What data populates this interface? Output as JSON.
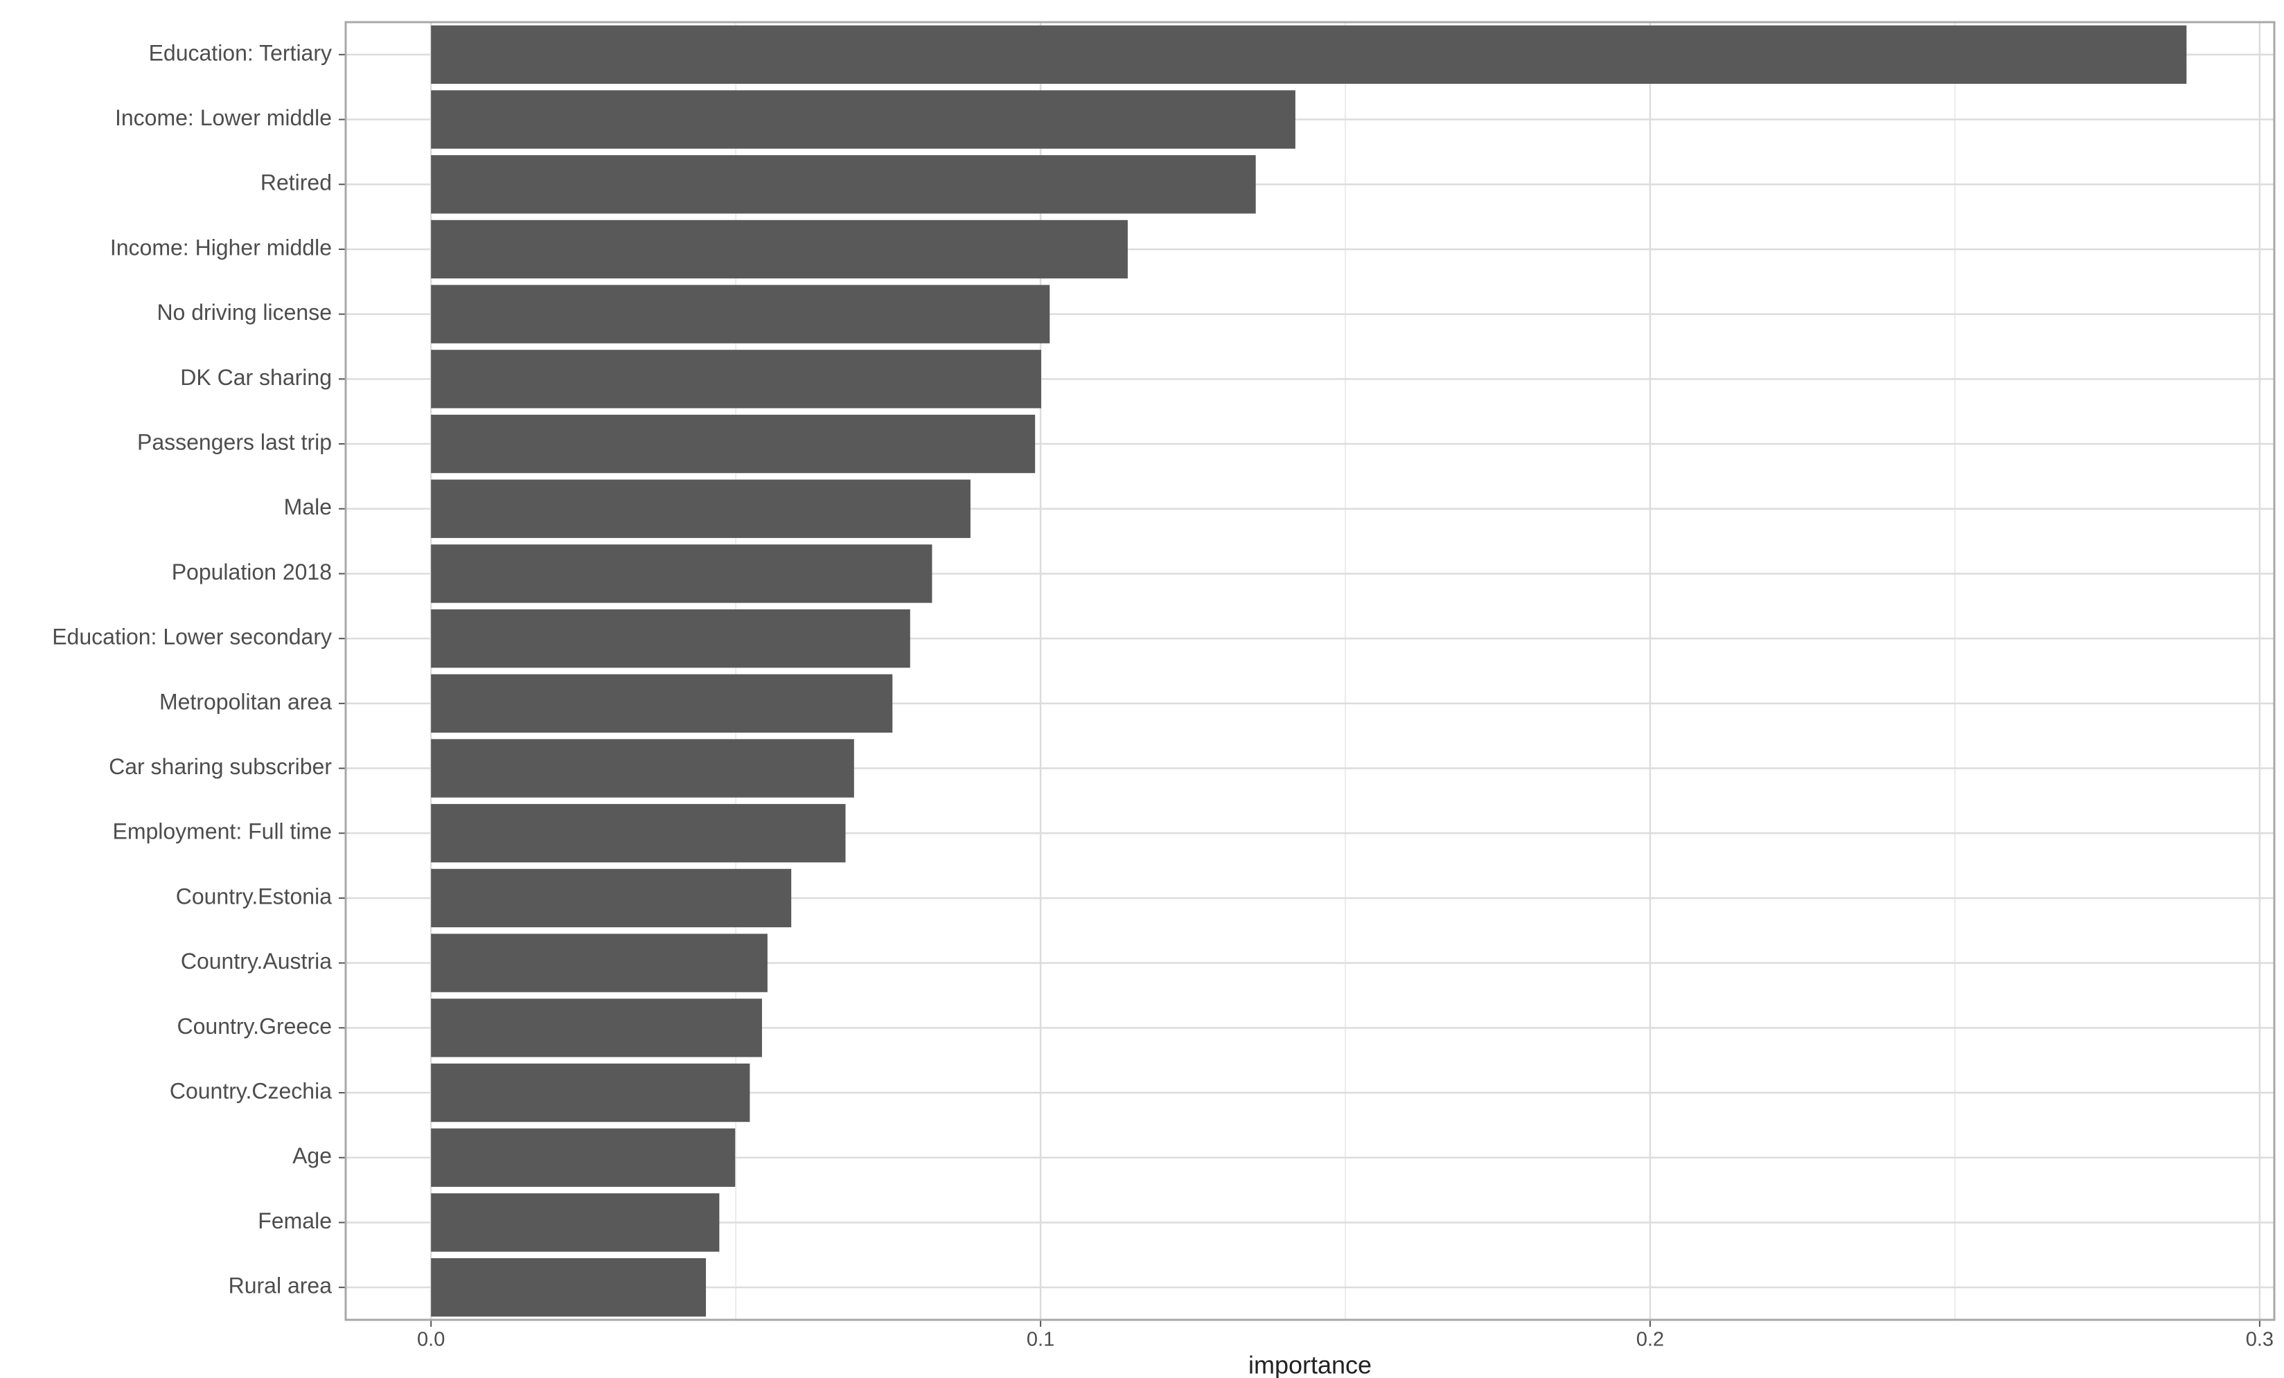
{
  "chart_data": {
    "type": "bar",
    "orientation": "horizontal",
    "x_label": "importance",
    "categories": [
      "Education: Tertiary",
      "Income: Lower middle",
      "Retired",
      "Income: Higher middle",
      "No driving license",
      "DK Car sharing",
      "Passengers last trip",
      "Male",
      "Population 2018",
      "Education: Lower secondary",
      "Metropolitan area",
      "Car sharing subscriber",
      "Employment: Full time",
      "Country.Estonia",
      "Country.Austria",
      "Country.Greece",
      "Country.Czechia",
      "Age",
      "Female",
      "Rural area"
    ],
    "values": [
      0.288,
      0.1418,
      0.1353,
      0.1143,
      0.1015,
      0.1001,
      0.0991,
      0.0885,
      0.0822,
      0.0786,
      0.0757,
      0.0694,
      0.068,
      0.0591,
      0.0552,
      0.0543,
      0.0523,
      0.0499,
      0.0473,
      0.0451
    ],
    "color": "#595959",
    "xlim": [
      -0.014,
      0.3024
    ],
    "xticks": [
      {
        "value": 0,
        "label": "0.0"
      },
      0.1,
      0.2,
      0.3
    ],
    "xminor": [
      0.05,
      0.15,
      0.25
    ],
    "grid": true
  }
}
